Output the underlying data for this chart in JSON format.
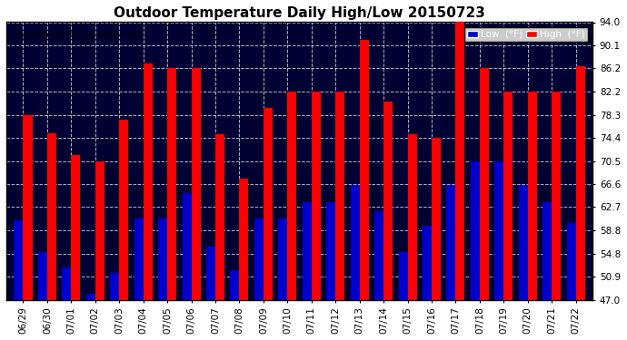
{
  "title": "Outdoor Temperature Daily High/Low 20150723",
  "copyright": "Copyright 2015 Cartronics.com",
  "dates": [
    "06/29",
    "06/30",
    "07/01",
    "07/02",
    "07/03",
    "07/04",
    "07/05",
    "07/06",
    "07/07",
    "07/08",
    "07/09",
    "07/10",
    "07/11",
    "07/12",
    "07/13",
    "07/14",
    "07/15",
    "07/16",
    "07/17",
    "07/18",
    "07/19",
    "07/20",
    "07/21",
    "07/22"
  ],
  "highs": [
    78.3,
    75.2,
    71.5,
    70.5,
    77.5,
    87.0,
    86.2,
    86.2,
    75.0,
    67.5,
    79.5,
    82.2,
    82.2,
    82.2,
    91.0,
    80.5,
    75.0,
    74.4,
    94.0,
    86.2,
    82.2,
    82.2,
    82.2,
    86.5
  ],
  "lows": [
    60.5,
    55.0,
    52.5,
    48.0,
    51.5,
    60.8,
    60.8,
    65.0,
    56.0,
    52.0,
    60.8,
    60.8,
    63.5,
    63.5,
    66.5,
    62.0,
    55.0,
    59.5,
    66.5,
    70.5,
    70.5,
    66.5,
    63.5,
    60.0
  ],
  "ylim": [
    47.0,
    94.0
  ],
  "yticks": [
    47.0,
    50.9,
    54.8,
    58.8,
    62.7,
    66.6,
    70.5,
    74.4,
    78.3,
    82.2,
    86.2,
    90.1,
    94.0
  ],
  "bar_color_high": "#ff0000",
  "bar_color_low": "#0000cc",
  "bg_color": "#ffffff",
  "plot_bg_color": "#000033",
  "grid_color": "#888888",
  "title_fontsize": 11,
  "legend_label_low": "Low  (°F)",
  "legend_label_high": "High  (°F)"
}
